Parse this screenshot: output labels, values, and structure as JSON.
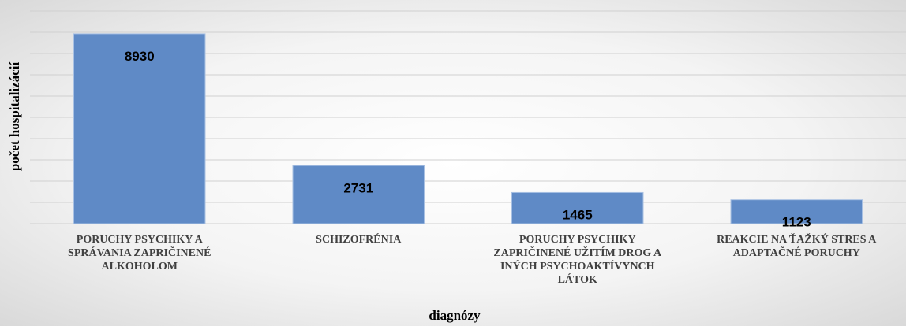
{
  "chart_data": {
    "type": "bar",
    "categories": [
      "PORUCHY PSYCHIKY A SPRÁVANIA ZAPRIČINENÉ ALKOHOLOM",
      "SCHIZOFRÉNIA",
      "PORUCHY PSYCHIKY ZAPRIČINENÉ UŽITÍM DROG A INÝCH PSYCHOAKTÍVYNCH LÁTOK",
      "REAKCIE NA ŤAŽKÝ STRES A ADAPTAČNÉ PORUCHY"
    ],
    "values": [
      8930,
      2731,
      1465,
      1123
    ],
    "color": "#5f8ac6",
    "x_label": "diagnózy",
    "y_label": "počet hospitalizácií",
    "ylim": [
      0,
      10000
    ],
    "yticks": [
      0,
      1000,
      2000,
      3000,
      4000,
      5000,
      6000,
      7000,
      8000,
      9000,
      10000
    ],
    "grid": true
  }
}
